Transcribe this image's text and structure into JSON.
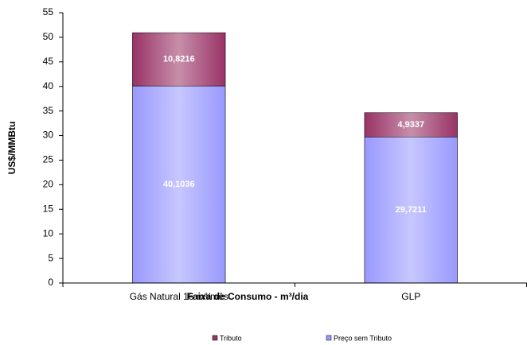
{
  "chart_data": {
    "type": "stacked_bar",
    "categories": [
      "Gás Natural 16 m³/mês",
      "GLP"
    ],
    "series": [
      {
        "name": "Preço sem Tributo",
        "color": "#9999ff",
        "values": [
          40.1036,
          29.7211
        ],
        "value_labels": [
          "40,1036",
          "29,7211"
        ]
      },
      {
        "name": "Tributo",
        "color": "#993366",
        "values": [
          10.8216,
          4.9337
        ],
        "value_labels": [
          "10,8216",
          "4,9337"
        ]
      }
    ],
    "xlabel": "Faixa de Consumo - m³/dia",
    "ylabel": "US$/MMBtu",
    "ylim": [
      0,
      55
    ],
    "yticks": [
      0,
      5,
      10,
      15,
      20,
      25,
      30,
      35,
      40,
      45,
      50,
      55
    ]
  }
}
